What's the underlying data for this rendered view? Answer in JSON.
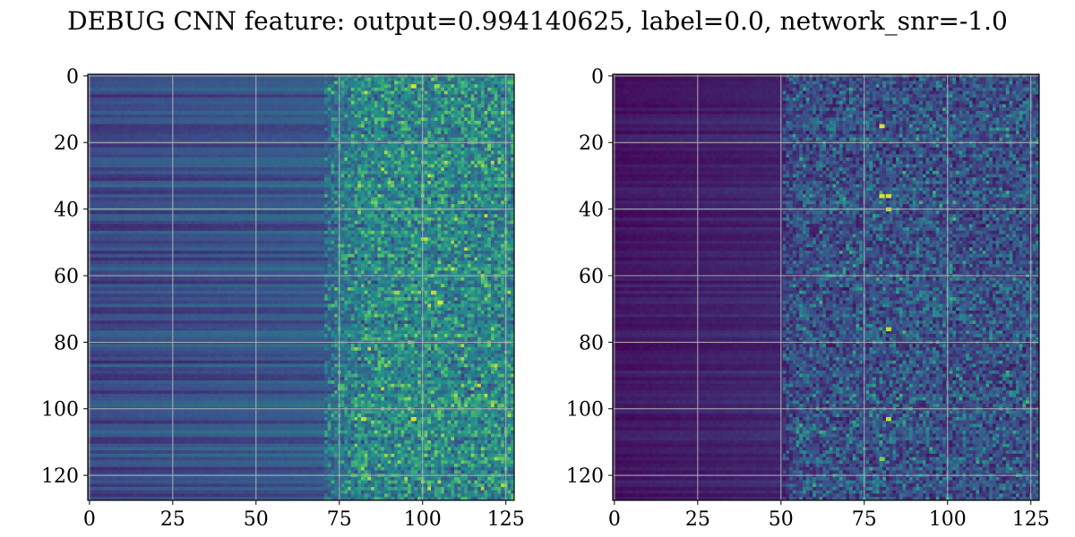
{
  "figure": {
    "suptitle": "DEBUG CNN feature: output=0.994140625, label=0.0, network_snr=-1.0"
  },
  "chart_data": [
    {
      "type": "heatmap",
      "title": "",
      "xlabel": "",
      "ylabel": "",
      "colormap": "viridis",
      "grid": true,
      "grid_color": "#b0b0b0",
      "rows": 128,
      "cols": 128,
      "xlim": [
        -0.5,
        127.5
      ],
      "ylim": [
        127.5,
        -0.5
      ],
      "x_ticks": [
        0,
        25,
        50,
        75,
        100,
        125
      ],
      "y_ticks": [
        0,
        20,
        40,
        60,
        80,
        100,
        120
      ],
      "x_tick_labels": [
        "0",
        "25",
        "50",
        "75",
        "100",
        "125"
      ],
      "y_tick_labels": [
        "0",
        "20",
        "40",
        "60",
        "80",
        "100",
        "120"
      ],
      "pattern": {
        "low_intensity_region_cols": [
          0,
          70
        ],
        "low_region_level": 0.22,
        "noisy_region_cols": [
          75,
          127
        ],
        "noisy_region_level": 0.3,
        "row_band_variation": 0.2,
        "bright_cells": [
          {
            "row": 3,
            "col": 97,
            "value": 0.95
          },
          {
            "row": 3,
            "col": 104,
            "value": 0.85
          },
          {
            "row": 65,
            "col": 92,
            "value": 0.85
          },
          {
            "row": 65,
            "col": 103,
            "value": 0.9
          },
          {
            "row": 68,
            "col": 105,
            "value": 0.95
          },
          {
            "row": 103,
            "col": 82,
            "value": 0.9
          },
          {
            "row": 103,
            "col": 97,
            "value": 0.95
          },
          {
            "row": 121,
            "col": 110,
            "value": 0.7
          }
        ]
      }
    },
    {
      "type": "heatmap",
      "title": "",
      "xlabel": "",
      "ylabel": "",
      "colormap": "viridis",
      "grid": true,
      "grid_color": "#b0b0b0",
      "rows": 128,
      "cols": 128,
      "xlim": [
        -0.5,
        127.5
      ],
      "ylim": [
        127.5,
        -0.5
      ],
      "x_ticks": [
        0,
        25,
        50,
        75,
        100,
        125
      ],
      "y_ticks": [
        0,
        20,
        40,
        60,
        80,
        100,
        120
      ],
      "x_tick_labels": [
        "0",
        "25",
        "50",
        "75",
        "100",
        "125"
      ],
      "y_tick_labels": [
        "0",
        "20",
        "40",
        "60",
        "80",
        "100",
        "120"
      ],
      "pattern": {
        "low_intensity_region_cols": [
          0,
          50
        ],
        "low_region_level": 0.06,
        "noisy_region_cols": [
          50,
          127
        ],
        "noisy_region_level": 0.18,
        "row_band_variation": 0.1,
        "bright_cells": [
          {
            "row": 15,
            "col": 80,
            "value": 0.95
          },
          {
            "row": 36,
            "col": 80,
            "value": 0.95
          },
          {
            "row": 36,
            "col": 82,
            "value": 0.95
          },
          {
            "row": 40,
            "col": 82,
            "value": 0.9
          },
          {
            "row": 76,
            "col": 82,
            "value": 0.9
          },
          {
            "row": 103,
            "col": 82,
            "value": 0.9
          },
          {
            "row": 115,
            "col": 80,
            "value": 0.8
          }
        ]
      }
    }
  ]
}
